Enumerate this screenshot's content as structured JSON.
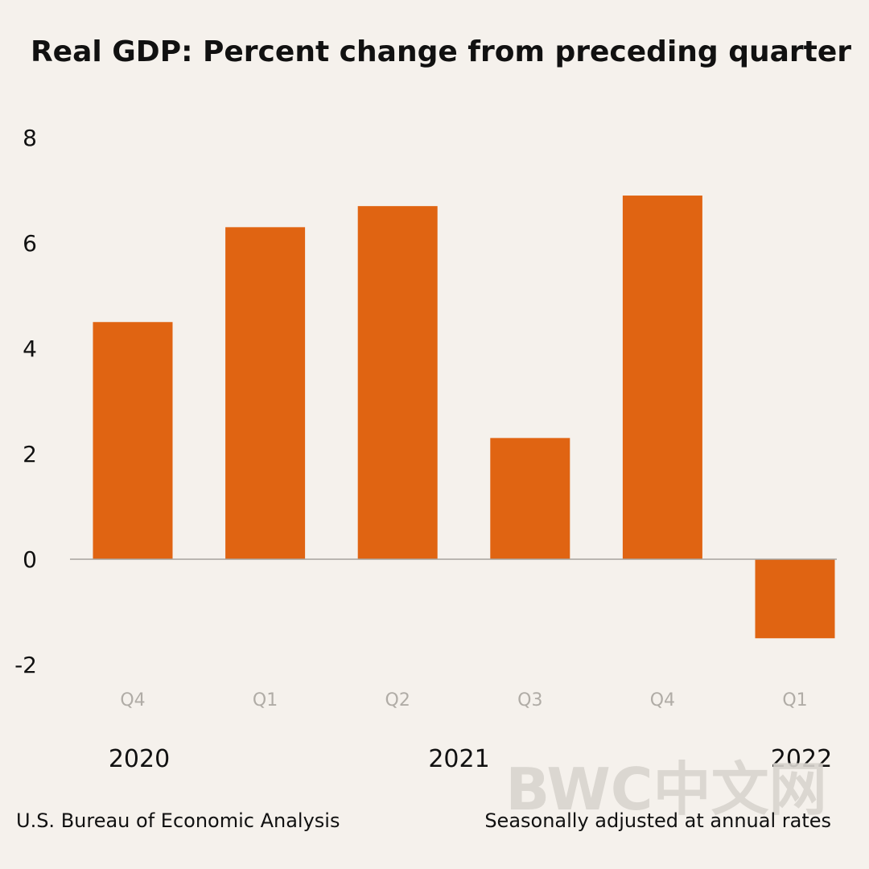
{
  "colors": {
    "background": "#f5f1ec",
    "bar": "#e06412",
    "axis": "#a7a39d",
    "text": "#111111",
    "category_text": "#b0aca6",
    "watermark": "#d9d5cf"
  },
  "watermark": "BWC中文网",
  "footer": {
    "source": "U.S. Bureau of Economic Analysis",
    "note": "Seasonally adjusted at annual rates"
  },
  "chart_data": {
    "type": "bar",
    "title": "Real GDP:  Percent change from preceding quarter",
    "xlabel": "",
    "ylabel": "",
    "categories": [
      "Q4",
      "Q1",
      "Q2",
      "Q3",
      "Q4",
      "Q1"
    ],
    "values": [
      4.5,
      6.3,
      6.7,
      2.3,
      6.9,
      -1.5
    ],
    "year_labels": [
      {
        "label": "2020",
        "category_index": 0
      },
      {
        "label": "2021",
        "category_index": 2.5
      },
      {
        "label": "2022",
        "category_index": 5
      }
    ],
    "ylim": [
      -2,
      8
    ],
    "yticks": [
      8,
      6,
      4,
      2,
      0,
      -2
    ],
    "grid": false
  }
}
